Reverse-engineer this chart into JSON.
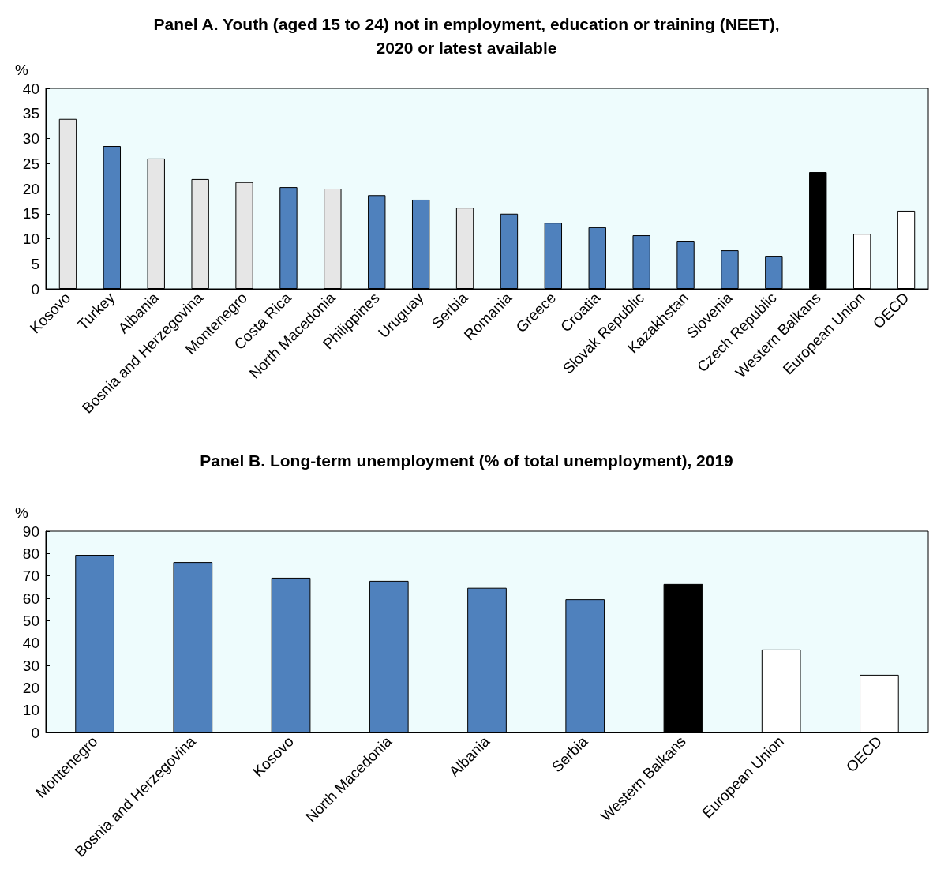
{
  "chart_data": [
    {
      "type": "bar",
      "title": "Panel A. Youth (aged 15 to 24) not in employment, education or training (NEET),\n2020 or latest available",
      "ylabel": "%",
      "categories": [
        "Kosovo",
        "Turkey",
        "Albania",
        "Bosnia and Herzegovina",
        "Montenegro",
        "Costa Rica",
        "North Macedonia",
        "Philippines",
        "Uruguay",
        "Serbia",
        "Romania",
        "Greece",
        "Croatia",
        "Slovak Republic",
        "Kazakhstan",
        "Slovenia",
        "Czech Republic",
        "Western Balkans",
        "European Union",
        "OECD"
      ],
      "values": [
        33.9,
        28.5,
        26.0,
        21.9,
        21.3,
        20.3,
        20.0,
        18.7,
        17.8,
        16.2,
        15.0,
        13.2,
        12.3,
        10.7,
        9.6,
        7.7,
        6.6,
        23.3,
        11.0,
        15.6
      ],
      "colors": [
        "#e6e6e6",
        "#4f81bd",
        "#e6e6e6",
        "#e6e6e6",
        "#e6e6e6",
        "#4f81bd",
        "#e6e6e6",
        "#4f81bd",
        "#4f81bd",
        "#e6e6e6",
        "#4f81bd",
        "#4f81bd",
        "#4f81bd",
        "#4f81bd",
        "#4f81bd",
        "#4f81bd",
        "#4f81bd",
        "#000000",
        "#ffffff",
        "#ffffff"
      ],
      "ylim": [
        0,
        40
      ],
      "yticks": [
        0,
        5,
        10,
        15,
        20,
        25,
        30,
        35,
        40
      ],
      "grid": false
    },
    {
      "type": "bar",
      "title": "Panel B. Long-term unemployment (% of total unemployment), 2019",
      "ylabel": "%",
      "categories": [
        "Montenegro",
        "Bosnia and Herzegovina",
        "Kosovo",
        "North Macedonia",
        "Albania",
        "Serbia",
        "Western Balkans",
        "European Union",
        "OECD"
      ],
      "values": [
        79.4,
        76.2,
        69.2,
        67.8,
        64.7,
        59.6,
        66.4,
        37.1,
        25.8
      ],
      "colors": [
        "#4f81bd",
        "#4f81bd",
        "#4f81bd",
        "#4f81bd",
        "#4f81bd",
        "#4f81bd",
        "#000000",
        "#ffffff",
        "#ffffff"
      ],
      "ylim": [
        0,
        90
      ],
      "yticks": [
        0,
        10,
        20,
        30,
        40,
        50,
        60,
        70,
        80,
        90
      ],
      "grid": false
    }
  ]
}
